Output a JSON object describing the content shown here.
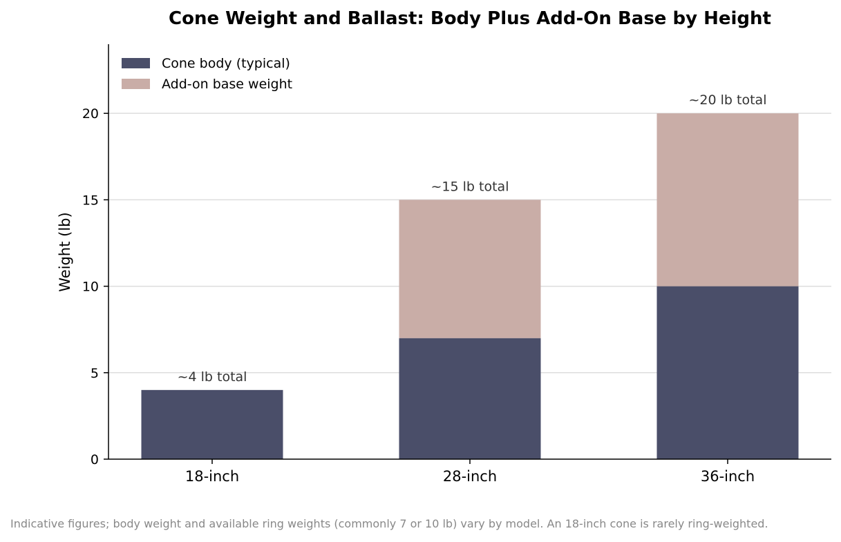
{
  "chart_data": {
    "type": "bar",
    "stacked": true,
    "title": "Cone Weight and Ballast: Body Plus Add-On Base by Height",
    "xlabel": "",
    "ylabel": "Weight (lb)",
    "ylim": [
      0,
      24
    ],
    "yticks": [
      0,
      5,
      10,
      15,
      20
    ],
    "categories": [
      "18-inch",
      "28-inch",
      "36-inch"
    ],
    "series": [
      {
        "name": "Cone body (typical)",
        "values": [
          4,
          7,
          10
        ],
        "color": "#4a4e69"
      },
      {
        "name": "Add-on base weight",
        "values": [
          0,
          8,
          10
        ],
        "color": "#c9ada7"
      }
    ],
    "total_labels": [
      "~4 lb total",
      "~15 lb total",
      "~20 lb total"
    ],
    "grid": "horizontal",
    "legend_position": "top-left"
  },
  "footnote": "Indicative figures; body weight and available ring weights (commonly 7 or 10 lb) vary by model. An 18-inch cone is rarely ring-weighted."
}
